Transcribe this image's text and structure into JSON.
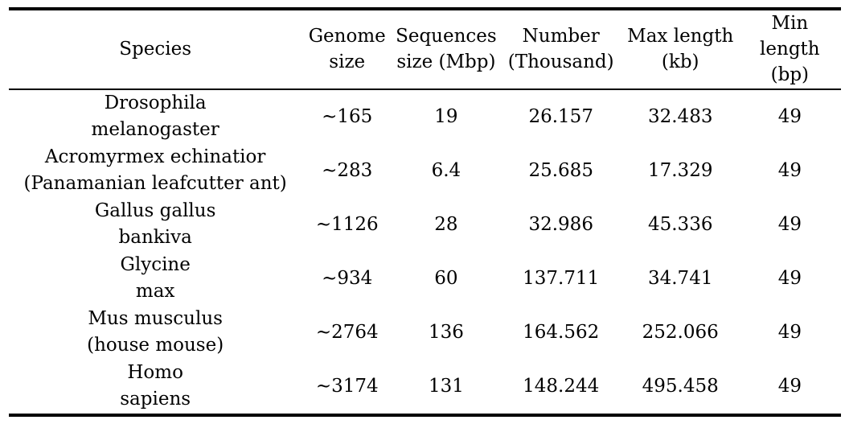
{
  "table": {
    "headers": [
      {
        "line1": "Species",
        "line2": ""
      },
      {
        "line1": "Genome",
        "line2": "size"
      },
      {
        "line1": "Sequences",
        "line2": "size (Mbp)"
      },
      {
        "line1": "Number",
        "line2": "(Thousand)"
      },
      {
        "line1": "Max length",
        "line2": "(kb)"
      },
      {
        "line1": "Min length",
        "line2": "(bp)"
      }
    ],
    "rows": [
      {
        "species_line1": "Drosophila",
        "species_line2": "melanogaster",
        "genome_size": "∼165",
        "sequences_size_mbp": "19",
        "number_thousand": "26.157",
        "max_length_kb": "32.483",
        "min_length_bp": "49"
      },
      {
        "species_line1": "Acromyrmex echinatior",
        "species_line2": "(Panamanian leafcutter ant)",
        "genome_size": "∼283",
        "sequences_size_mbp": "6.4",
        "number_thousand": "25.685",
        "max_length_kb": "17.329",
        "min_length_bp": "49"
      },
      {
        "species_line1": "Gallus gallus",
        "species_line2": "bankiva",
        "genome_size": "∼1126",
        "sequences_size_mbp": "28",
        "number_thousand": "32.986",
        "max_length_kb": "45.336",
        "min_length_bp": "49"
      },
      {
        "species_line1": "Glycine",
        "species_line2": "max",
        "genome_size": "∼934",
        "sequences_size_mbp": "60",
        "number_thousand": "137.711",
        "max_length_kb": "34.741",
        "min_length_bp": "49"
      },
      {
        "species_line1": "Mus musculus",
        "species_line2": "(house mouse)",
        "genome_size": "∼2764",
        "sequences_size_mbp": "136",
        "number_thousand": "164.562",
        "max_length_kb": "252.066",
        "min_length_bp": "49"
      },
      {
        "species_line1": "Homo",
        "species_line2": "sapiens",
        "genome_size": "∼3174",
        "sequences_size_mbp": "131",
        "number_thousand": "148.244",
        "max_length_kb": "495.458",
        "min_length_bp": "49"
      }
    ],
    "colors": {
      "rule": "#000000",
      "text": "#000000",
      "background": "#ffffff"
    }
  }
}
